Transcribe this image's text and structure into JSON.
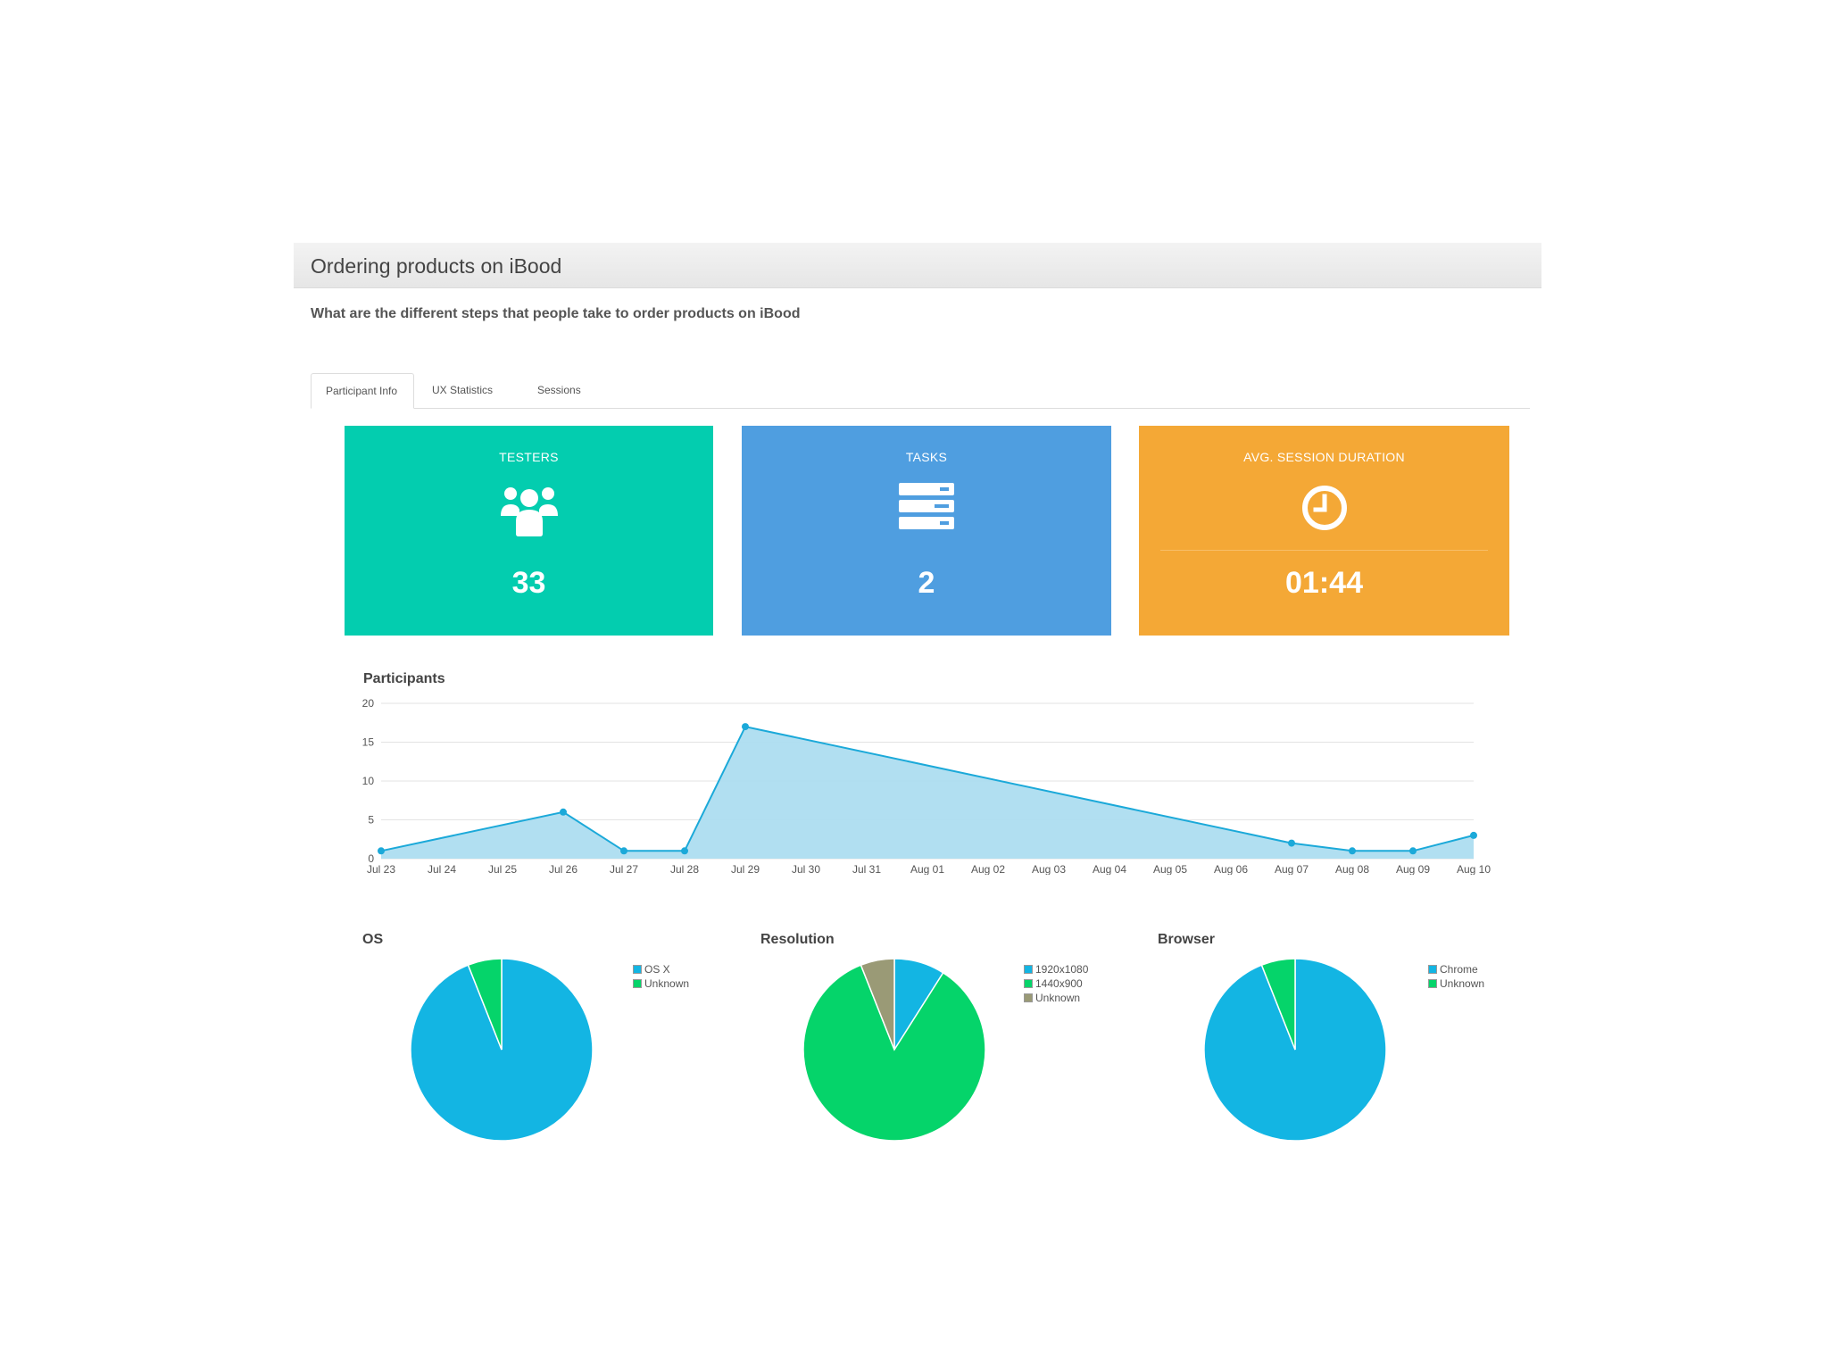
{
  "header": {
    "title": "Ordering products on iBood"
  },
  "description": "What are the different steps that people take to order products on iBood",
  "tabs": [
    {
      "label": "Participant Info",
      "active": true
    },
    {
      "label": "UX Statistics",
      "active": false
    },
    {
      "label": "Sessions",
      "active": false
    }
  ],
  "cards": [
    {
      "label": "TESTERS",
      "value": "33",
      "icon": "users-icon",
      "color": "#03cdaf"
    },
    {
      "label": "TASKS",
      "value": "2",
      "icon": "list-icon",
      "color": "#4f9ee0"
    },
    {
      "label": "AVG. SESSION DURATION",
      "value": "01:44",
      "icon": "clock-icon",
      "color": "#f4a836"
    }
  ],
  "chart_data": [
    {
      "type": "area",
      "title": "Participants",
      "categories": [
        "Jul 23",
        "Jul 24",
        "Jul 25",
        "Jul 26",
        "Jul 27",
        "Jul 28",
        "Jul 29",
        "Jul 30",
        "Jul 31",
        "Aug 01",
        "Aug 02",
        "Aug 03",
        "Aug 04",
        "Aug 05",
        "Aug 06",
        "Aug 07",
        "Aug 08",
        "Aug 09",
        "Aug 10"
      ],
      "points": [
        {
          "x": "Jul 23",
          "y": 1
        },
        {
          "x": "Jul 26",
          "y": 6
        },
        {
          "x": "Jul 27",
          "y": 1
        },
        {
          "x": "Jul 28",
          "y": 1
        },
        {
          "x": "Jul 29",
          "y": 17
        },
        {
          "x": "Aug 07",
          "y": 2
        },
        {
          "x": "Aug 08",
          "y": 1
        },
        {
          "x": "Aug 09",
          "y": 1
        },
        {
          "x": "Aug 10",
          "y": 3
        }
      ],
      "yticks": [
        0,
        5,
        10,
        15,
        20
      ],
      "ylim": [
        0,
        20
      ],
      "grid": true,
      "color": "#1ba9d9"
    },
    {
      "type": "pie",
      "title": "OS",
      "slices": [
        {
          "label": "OS X",
          "value": 94,
          "color": "#13b5e3"
        },
        {
          "label": "Unknown",
          "value": 6,
          "color": "#05d46a"
        }
      ],
      "legend": "right"
    },
    {
      "type": "pie",
      "title": "Resolution",
      "slices": [
        {
          "label": "1920x1080",
          "value": 9,
          "color": "#13b5e3"
        },
        {
          "label": "1440x900",
          "value": 85,
          "color": "#05d46a"
        },
        {
          "label": "Unknown",
          "value": 6,
          "color": "#9a9a76"
        }
      ],
      "legend": "right"
    },
    {
      "type": "pie",
      "title": "Browser",
      "slices": [
        {
          "label": "Chrome",
          "value": 94,
          "color": "#13b5e3"
        },
        {
          "label": "Unknown",
          "value": 6,
          "color": "#05d46a"
        }
      ],
      "legend": "right"
    }
  ]
}
